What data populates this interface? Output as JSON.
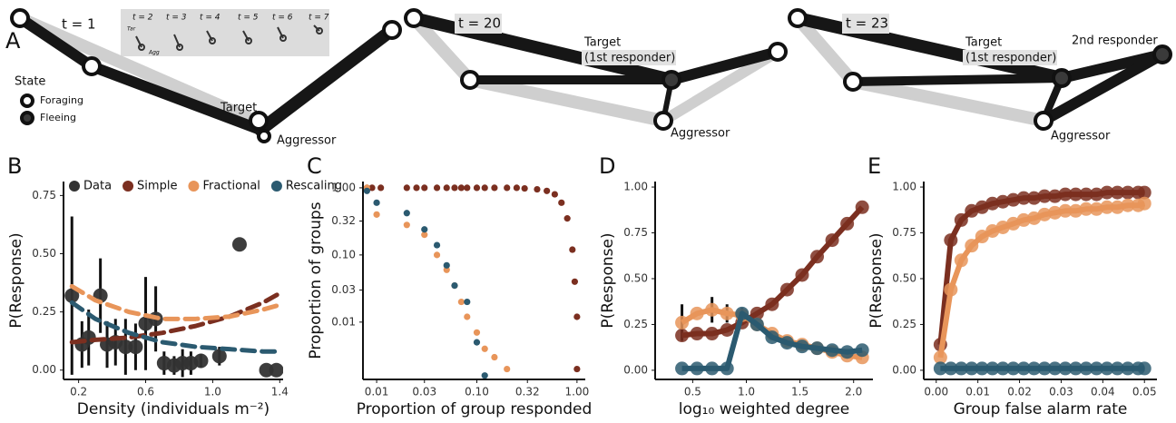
{
  "panel_a": {
    "label": "A",
    "legend_title": "State",
    "legend_items": [
      "Foraging",
      "Fleeing"
    ],
    "inset_times": [
      "t = 2",
      "t = 3",
      "t = 4",
      "t = 5",
      "t = 6",
      "t = 7"
    ],
    "inset_labels": [
      "Tar",
      "Agg"
    ],
    "snapshots": [
      {
        "time": "t = 1",
        "labels": [
          "Target",
          "Aggressor"
        ]
      },
      {
        "time": "t = 20",
        "labels": [
          "Target",
          "(1st responder)",
          "Aggressor"
        ]
      },
      {
        "time": "t = 23",
        "labels": [
          "Target",
          "(1st responder)",
          "2nd responder",
          "Aggressor"
        ]
      }
    ]
  },
  "chart_data": [
    {
      "type": "scatter",
      "panel_label": "B",
      "x_label": "Density (individuals m⁻²)",
      "y_label": "P(Response)",
      "xlim": [
        0.11,
        1.42
      ],
      "ylim": [
        -0.04,
        0.81
      ],
      "xticks": [
        0.2,
        0.6,
        {
          "value": 1,
          "label": "1.0"
        },
        1.4
      ],
      "yticks": [
        {
          "value": 0,
          "label": "0.00"
        },
        0.25,
        {
          "value": 0.5,
          "label": "0.50"
        },
        0.75
      ],
      "legend": "top",
      "series": [
        {
          "name": "Data",
          "type": "scatter",
          "color": "#333333",
          "x": [
            0.16,
            0.22,
            0.26,
            0.33,
            0.37,
            0.42,
            0.48,
            0.54,
            0.6,
            0.66,
            0.71,
            0.77,
            0.82,
            0.87,
            0.93,
            1.04,
            1.16,
            1.32,
            1.38
          ],
          "values": [
            0.32,
            0.11,
            0.14,
            0.32,
            0.11,
            0.12,
            0.1,
            0.1,
            0.2,
            0.22,
            0.03,
            0.02,
            0.03,
            0.03,
            0.04,
            0.06,
            0.54,
            0.0,
            0.0
          ],
          "error": [
            0.34,
            0.1,
            0.12,
            0.16,
            0.1,
            0.1,
            0.12,
            0.1,
            0.2,
            0.14,
            0.05,
            0.04,
            0.06,
            0.05,
            0.03,
            0.04,
            0.0,
            0.0,
            0.0
          ]
        },
        {
          "name": "Simple",
          "type": "line",
          "line_style": "dashed",
          "color": "#7b2f20",
          "x": [
            0.16,
            0.3,
            0.5,
            0.7,
            0.9,
            1.1,
            1.3,
            1.4
          ],
          "values": [
            0.12,
            0.13,
            0.14,
            0.16,
            0.19,
            0.23,
            0.29,
            0.33
          ]
        },
        {
          "name": "Fractional",
          "type": "line",
          "line_style": "dashed",
          "color": "#e8955a",
          "x": [
            0.16,
            0.3,
            0.5,
            0.7,
            0.9,
            1.1,
            1.3,
            1.4
          ],
          "values": [
            0.36,
            0.3,
            0.25,
            0.22,
            0.22,
            0.23,
            0.26,
            0.28
          ]
        },
        {
          "name": "Rescaling",
          "type": "line",
          "line_style": "dashed",
          "color": "#2b5a70",
          "x": [
            0.16,
            0.3,
            0.5,
            0.7,
            0.9,
            1.1,
            1.3,
            1.4
          ],
          "values": [
            0.29,
            0.22,
            0.16,
            0.12,
            0.1,
            0.09,
            0.08,
            0.08
          ]
        }
      ]
    },
    {
      "type": "scatter",
      "panel_label": "C",
      "x_label": "Proportion of group responded",
      "y_label": "Proportion of groups",
      "log_x": true,
      "log_y": true,
      "xlim": [
        0.0073,
        1.21
      ],
      "ylim": [
        0.0014,
        1.24
      ],
      "xticks": [
        0.01,
        0.03,
        {
          "value": 0.1,
          "label": "0.10"
        },
        0.32,
        {
          "value": 1,
          "label": "1.00"
        }
      ],
      "yticks": [
        0.01,
        0.03,
        {
          "value": 0.1,
          "label": "0.10"
        },
        0.32,
        {
          "value": 1,
          "label": "1.00"
        }
      ],
      "series": [
        {
          "type": "scatter",
          "color": "#7b2f20",
          "x": [
            0.008,
            0.009,
            0.011,
            0.02,
            0.025,
            0.03,
            0.04,
            0.05,
            0.06,
            0.07,
            0.08,
            0.1,
            0.12,
            0.15,
            0.2,
            0.25,
            0.3,
            0.4,
            0.5,
            0.6,
            0.7,
            0.8,
            0.9,
            0.95,
            1.0,
            1.0
          ],
          "values": [
            1,
            1,
            1,
            1,
            1,
            1,
            1,
            1,
            1,
            1,
            1,
            1,
            1,
            1,
            1,
            1,
            0.98,
            0.95,
            0.9,
            0.8,
            0.6,
            0.35,
            0.12,
            0.04,
            0.012,
            0.002
          ]
        },
        {
          "type": "scatter",
          "color": "#e8955a",
          "x": [
            0.008,
            0.01,
            0.02,
            0.03,
            0.04,
            0.05,
            0.06,
            0.07,
            0.08,
            0.1,
            0.12,
            0.15,
            0.2
          ],
          "values": [
            1.0,
            0.4,
            0.28,
            0.2,
            0.1,
            0.06,
            0.035,
            0.02,
            0.012,
            0.007,
            0.004,
            0.003,
            0.002
          ]
        },
        {
          "type": "scatter",
          "color": "#2b5a70",
          "x": [
            0.008,
            0.01,
            0.02,
            0.03,
            0.04,
            0.05,
            0.06,
            0.08,
            0.1,
            0.12
          ],
          "values": [
            0.9,
            0.6,
            0.42,
            0.24,
            0.14,
            0.07,
            0.035,
            0.02,
            0.005,
            0.0016
          ]
        }
      ]
    },
    {
      "type": "line",
      "panel_label": "D",
      "x_label": "log₁₀ weighted degree",
      "y_label": "P(Response)",
      "xlim": [
        0.15,
        2.18
      ],
      "ylim": [
        -0.05,
        1.03
      ],
      "xticks": [
        0.5,
        {
          "value": 1,
          "label": "1.0"
        },
        1.5,
        {
          "value": 2,
          "label": "2.0"
        }
      ],
      "yticks": [
        {
          "value": 0,
          "label": "0.00"
        },
        0.25,
        {
          "value": 0.5,
          "label": "0.50"
        },
        0.75,
        {
          "value": 1,
          "label": "1.00"
        }
      ],
      "series": [
        {
          "type": "line",
          "marker": true,
          "color": "#7b2f20",
          "x": [
            0.4,
            0.54,
            0.68,
            0.82,
            0.96,
            1.1,
            1.24,
            1.38,
            1.52,
            1.66,
            1.8,
            1.94,
            2.08
          ],
          "values": [
            0.19,
            0.2,
            0.2,
            0.22,
            0.26,
            0.31,
            0.36,
            0.44,
            0.52,
            0.62,
            0.71,
            0.8,
            0.89
          ]
        },
        {
          "type": "line",
          "marker": true,
          "color": "#e8955a",
          "x": [
            0.4,
            0.54,
            0.68,
            0.82,
            0.96,
            1.1,
            1.24,
            1.38,
            1.52,
            1.66,
            1.8,
            1.94,
            2.08
          ],
          "values": [
            0.26,
            0.31,
            0.33,
            0.31,
            0.3,
            0.25,
            0.2,
            0.16,
            0.14,
            0.12,
            0.1,
            0.08,
            0.07
          ],
          "error": [
            0.1,
            0.0,
            0.07,
            0.05,
            0.04,
            0.0,
            0.0,
            0.0,
            0.0,
            0.0,
            0.0,
            0.0,
            0.0
          ]
        },
        {
          "type": "line",
          "marker": true,
          "color": "#2b5a70",
          "x": [
            0.4,
            0.54,
            0.68,
            0.82,
            0.96,
            1.1,
            1.24,
            1.38,
            1.52,
            1.66,
            1.8,
            1.94,
            2.08
          ],
          "values": [
            0.01,
            0.01,
            0.01,
            0.01,
            0.31,
            0.25,
            0.18,
            0.15,
            0.13,
            0.12,
            0.11,
            0.1,
            0.11
          ]
        }
      ]
    },
    {
      "type": "line",
      "panel_label": "E",
      "x_label": "Group false alarm rate",
      "y_label": "P(Response)",
      "xlim": [
        -0.003,
        0.053
      ],
      "ylim": [
        -0.05,
        1.03
      ],
      "xticks": [
        {
          "value": 0,
          "label": "0.00"
        },
        0.01,
        0.02,
        0.03,
        0.04,
        0.05
      ],
      "yticks": [
        {
          "value": 0,
          "label": "0.00"
        },
        0.25,
        {
          "value": 0.5,
          "label": "0.50"
        },
        0.75,
        {
          "value": 1,
          "label": "1.00"
        }
      ],
      "series": [
        {
          "type": "line",
          "marker": true,
          "color": "#7b2f20",
          "x": [
            0.001,
            0.0035,
            0.006,
            0.0085,
            0.011,
            0.0135,
            0.016,
            0.0185,
            0.021,
            0.0235,
            0.026,
            0.0285,
            0.031,
            0.0335,
            0.036,
            0.0385,
            0.041,
            0.0435,
            0.046,
            0.0485,
            0.05
          ],
          "values": [
            0.14,
            0.71,
            0.82,
            0.87,
            0.89,
            0.91,
            0.92,
            0.93,
            0.94,
            0.94,
            0.95,
            0.95,
            0.96,
            0.96,
            0.96,
            0.96,
            0.97,
            0.97,
            0.97,
            0.97,
            0.97
          ]
        },
        {
          "type": "line",
          "marker": true,
          "color": "#e8955a",
          "x": [
            0.001,
            0.0035,
            0.006,
            0.0085,
            0.011,
            0.0135,
            0.016,
            0.0185,
            0.021,
            0.0235,
            0.026,
            0.0285,
            0.031,
            0.0335,
            0.036,
            0.0385,
            0.041,
            0.0435,
            0.046,
            0.0485,
            0.05
          ],
          "values": [
            0.07,
            0.44,
            0.6,
            0.68,
            0.73,
            0.76,
            0.78,
            0.8,
            0.82,
            0.83,
            0.85,
            0.86,
            0.87,
            0.87,
            0.88,
            0.88,
            0.89,
            0.89,
            0.9,
            0.9,
            0.91
          ]
        },
        {
          "type": "line",
          "marker": true,
          "color": "#2b5a70",
          "x": [
            0.001,
            0.0035,
            0.006,
            0.0085,
            0.011,
            0.0135,
            0.016,
            0.0185,
            0.021,
            0.0235,
            0.026,
            0.0285,
            0.031,
            0.0335,
            0.036,
            0.0385,
            0.041,
            0.0435,
            0.046,
            0.0485,
            0.05
          ],
          "values": [
            0.01,
            0.01,
            0.01,
            0.01,
            0.01,
            0.01,
            0.01,
            0.01,
            0.01,
            0.01,
            0.01,
            0.01,
            0.01,
            0.01,
            0.01,
            0.01,
            0.01,
            0.01,
            0.01,
            0.01,
            0.01
          ]
        }
      ]
    }
  ]
}
